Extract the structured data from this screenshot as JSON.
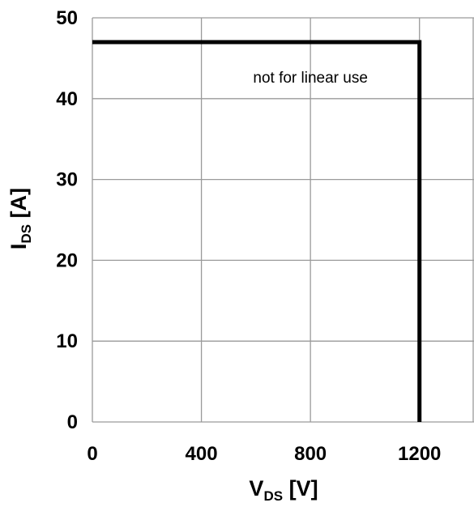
{
  "chart_data": {
    "type": "line",
    "xlabel": {
      "main": "V",
      "sub": "DS",
      "unit": " [V]"
    },
    "ylabel": {
      "main": "I",
      "sub": "DS",
      "unit": " [A]"
    },
    "x_ticks": [
      0,
      400,
      800,
      1200
    ],
    "y_ticks": [
      0,
      10,
      20,
      30,
      40,
      50
    ],
    "x_tick_labels": [
      "0",
      "400",
      "800",
      "1200"
    ],
    "y_tick_labels": [
      "0",
      "10",
      "20",
      "30",
      "40",
      "50"
    ],
    "xlim": [
      0,
      1400
    ],
    "ylim": [
      0,
      50
    ],
    "grid": true,
    "series": [
      {
        "x": [
          0,
          1200,
          1200
        ],
        "y": [
          47,
          47,
          0
        ]
      }
    ],
    "annotations": [
      {
        "text": "not for linear use",
        "x": 800,
        "y": 42.7
      }
    ]
  }
}
